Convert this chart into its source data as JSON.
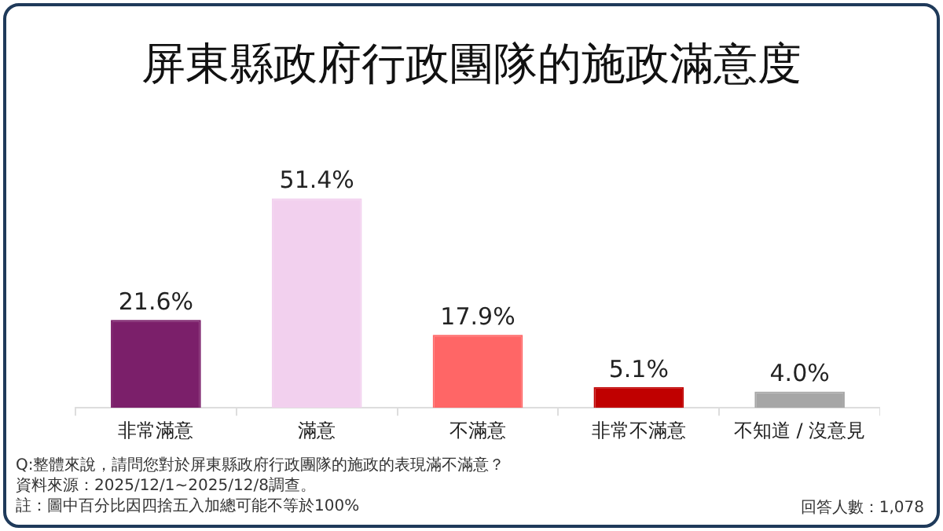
{
  "chart_data": {
    "type": "bar",
    "title": "屏東縣政府行政團隊的施政滿意度",
    "categories": [
      "非常滿意",
      "滿意",
      "不滿意",
      "非常不滿意",
      "不知道 / 沒意見"
    ],
    "values": [
      21.6,
      51.4,
      17.9,
      5.1,
      4.0
    ],
    "colors": [
      "#7b1f6a",
      "#f2d0ee",
      "#ff6666",
      "#c00000",
      "#a6a6a6"
    ],
    "value_labels": [
      "21.6%",
      "51.4%",
      "17.9%",
      "5.1%",
      "4.0%"
    ],
    "relative": false,
    "grid": false,
    "legend": false,
    "annotations": [
      "Q:整體來說，請問您對於屏東縣政府行政團隊的施政的表現滿不滿意？",
      "資料來源：2025/12/1~2025/12/8調查。",
      "註：圖中百分比因四捨五入加總可能不等於100%",
      "回答人數：1,078"
    ]
  }
}
